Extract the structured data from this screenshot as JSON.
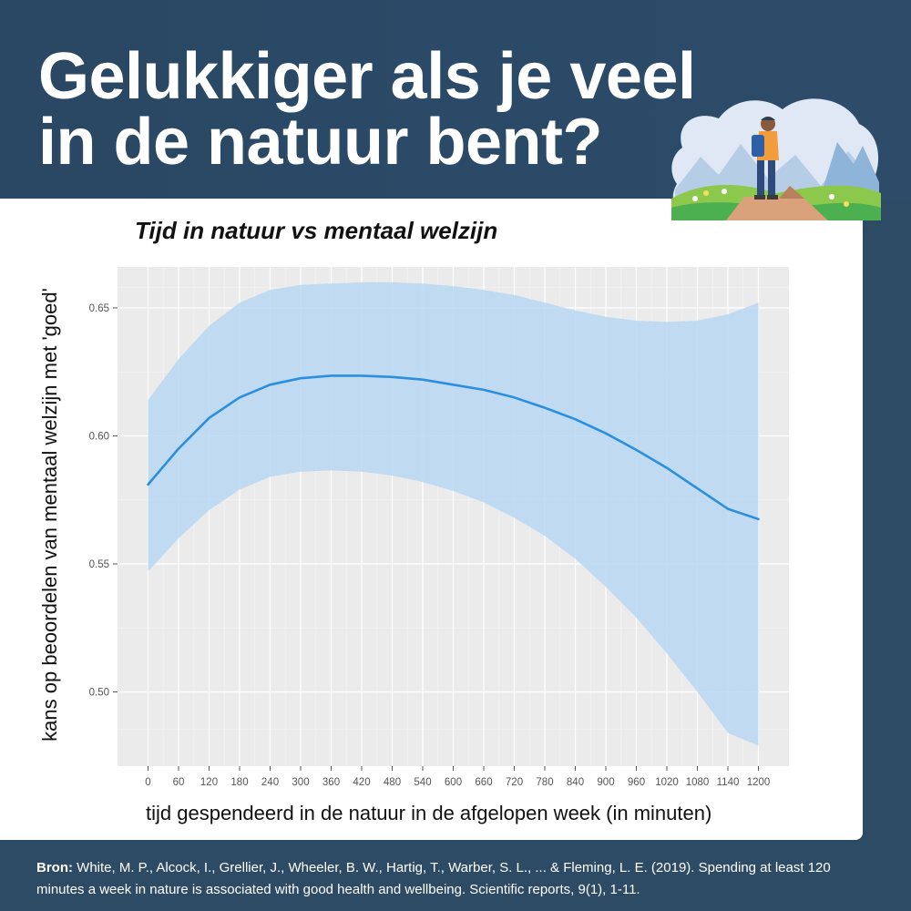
{
  "header": {
    "title_line1": "Gelukkiger als je veel",
    "title_line2": "in de natuur bent?"
  },
  "illustration": {
    "name": "hiker-landscape-illustration"
  },
  "colors": {
    "background": "#2d4b64",
    "panel": "#ebebeb",
    "line": "#2b8fe0",
    "band": "#b9d7f2"
  },
  "chart_data": {
    "type": "line",
    "title": "Tijd in natuur vs mentaal welzijn",
    "xlabel": "tijd gespendeerd in de natuur in de afgelopen week (in minuten)",
    "ylabel": "kans op beoordelen van mentaal welzijn met 'goed'",
    "xlim": [
      -60,
      1260
    ],
    "ylim": [
      0.471,
      0.666
    ],
    "xticks": [
      0,
      60,
      120,
      180,
      240,
      300,
      360,
      420,
      480,
      540,
      600,
      660,
      720,
      780,
      840,
      900,
      960,
      1020,
      1080,
      1140,
      1200
    ],
    "yticks": [
      0.5,
      0.55,
      0.6,
      0.65
    ],
    "ytick_labels": [
      "0.50",
      "0.55",
      "0.60",
      "0.65"
    ],
    "grid": true,
    "series": [
      {
        "x": [
          0,
          60,
          120,
          180,
          240,
          300,
          360,
          420,
          480,
          540,
          600,
          660,
          720,
          780,
          840,
          900,
          960,
          1020,
          1080,
          1140,
          1200
        ],
        "y": [
          0.581,
          0.595,
          0.607,
          0.615,
          0.62,
          0.6225,
          0.6235,
          0.6235,
          0.623,
          0.622,
          0.62,
          0.618,
          0.615,
          0.611,
          0.6065,
          0.601,
          0.5945,
          0.5875,
          0.5795,
          0.5715,
          0.5675
        ],
        "lower": [
          0.547,
          0.56,
          0.571,
          0.579,
          0.584,
          0.586,
          0.5865,
          0.586,
          0.5845,
          0.582,
          0.5785,
          0.574,
          0.568,
          0.561,
          0.552,
          0.541,
          0.529,
          0.515,
          0.5,
          0.484,
          0.479
        ],
        "upper": [
          0.614,
          0.63,
          0.643,
          0.652,
          0.657,
          0.659,
          0.6595,
          0.66,
          0.66,
          0.6595,
          0.6585,
          0.657,
          0.655,
          0.652,
          0.649,
          0.6465,
          0.645,
          0.6445,
          0.645,
          0.6475,
          0.652
        ]
      }
    ]
  },
  "footer": {
    "source_label": "Bron:",
    "source_text": " White, M. P., Alcock, I., Grellier, J., Wheeler, B. W., Hartig, T., Warber, S. L., ... & Fleming, L. E. (2019). Spending at least 120 minutes a week in nature is associated with good health and wellbeing. Scientific reports, 9(1), 1-11."
  }
}
